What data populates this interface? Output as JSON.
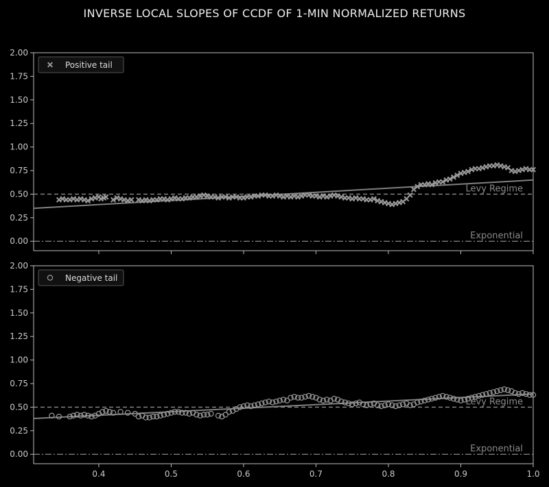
{
  "title": "INVERSE LOCAL SLOPES OF CCDF OF 1-MIN NORMALIZED RETURNS",
  "colors": {
    "background": "#000000",
    "axes": "#bfbfbf",
    "text": "#cccccc",
    "marker": "#9a9a9a",
    "fit_line": "#808080",
    "ref_line": "#8c8c8c"
  },
  "chart_data": [
    {
      "type": "scatter",
      "title": "",
      "legend_label": "Positive tail",
      "legend_position": "top-left",
      "marker": "x",
      "xlim": [
        0.31,
        1.0
      ],
      "ylim": [
        -0.1,
        2.0
      ],
      "xticks": [
        "0.4",
        "0.5",
        "0.6",
        "0.7",
        "0.8",
        "0.9",
        "1.0"
      ],
      "xtick_values": [
        0.4,
        0.5,
        0.6,
        0.7,
        0.8,
        0.9,
        1.0
      ],
      "yticks": [
        "0.00",
        "0.25",
        "0.50",
        "0.75",
        "1.00",
        "1.25",
        "1.50",
        "1.75",
        "2.00"
      ],
      "ytick_values": [
        0,
        0.25,
        0.5,
        0.75,
        1.0,
        1.25,
        1.5,
        1.75,
        2.0
      ],
      "show_xtick_labels": false,
      "fit_line": {
        "x": [
          0.31,
          1.0
        ],
        "y": [
          0.35,
          0.65
        ]
      },
      "reference_lines": [
        {
          "y": 0.5,
          "style": "dashed",
          "label": "Levy Regime"
        },
        {
          "y": 0.0,
          "style": "dashdot",
          "label": "Exponential"
        }
      ],
      "points": [
        [
          0.345,
          0.44
        ],
        [
          0.35,
          0.45
        ],
        [
          0.355,
          0.44
        ],
        [
          0.36,
          0.44
        ],
        [
          0.365,
          0.45
        ],
        [
          0.37,
          0.44
        ],
        [
          0.375,
          0.45
        ],
        [
          0.38,
          0.44
        ],
        [
          0.385,
          0.43
        ],
        [
          0.39,
          0.45
        ],
        [
          0.395,
          0.46
        ],
        [
          0.4,
          0.47
        ],
        [
          0.403,
          0.45
        ],
        [
          0.407,
          0.46
        ],
        [
          0.41,
          0.47
        ],
        [
          0.42,
          0.44
        ],
        [
          0.425,
          0.46
        ],
        [
          0.43,
          0.45
        ],
        [
          0.435,
          0.44
        ],
        [
          0.44,
          0.43
        ],
        [
          0.445,
          0.44
        ],
        [
          0.455,
          0.44
        ],
        [
          0.46,
          0.43
        ],
        [
          0.465,
          0.44
        ],
        [
          0.47,
          0.43
        ],
        [
          0.475,
          0.44
        ],
        [
          0.48,
          0.44
        ],
        [
          0.485,
          0.45
        ],
        [
          0.49,
          0.45
        ],
        [
          0.495,
          0.44
        ],
        [
          0.5,
          0.45
        ],
        [
          0.505,
          0.46
        ],
        [
          0.51,
          0.45
        ],
        [
          0.515,
          0.45
        ],
        [
          0.52,
          0.46
        ],
        [
          0.525,
          0.46
        ],
        [
          0.53,
          0.47
        ],
        [
          0.535,
          0.47
        ],
        [
          0.54,
          0.48
        ],
        [
          0.545,
          0.49
        ],
        [
          0.55,
          0.48
        ],
        [
          0.555,
          0.47
        ],
        [
          0.56,
          0.47
        ],
        [
          0.565,
          0.46
        ],
        [
          0.57,
          0.47
        ],
        [
          0.575,
          0.47
        ],
        [
          0.58,
          0.46
        ],
        [
          0.585,
          0.47
        ],
        [
          0.59,
          0.47
        ],
        [
          0.595,
          0.46
        ],
        [
          0.6,
          0.46
        ],
        [
          0.605,
          0.47
        ],
        [
          0.61,
          0.47
        ],
        [
          0.615,
          0.48
        ],
        [
          0.62,
          0.48
        ],
        [
          0.625,
          0.49
        ],
        [
          0.63,
          0.49
        ],
        [
          0.635,
          0.48
        ],
        [
          0.64,
          0.48
        ],
        [
          0.645,
          0.49
        ],
        [
          0.65,
          0.48
        ],
        [
          0.655,
          0.47
        ],
        [
          0.66,
          0.48
        ],
        [
          0.665,
          0.47
        ],
        [
          0.67,
          0.48
        ],
        [
          0.675,
          0.47
        ],
        [
          0.68,
          0.48
        ],
        [
          0.685,
          0.49
        ],
        [
          0.69,
          0.49
        ],
        [
          0.695,
          0.48
        ],
        [
          0.7,
          0.48
        ],
        [
          0.705,
          0.47
        ],
        [
          0.71,
          0.48
        ],
        [
          0.715,
          0.47
        ],
        [
          0.72,
          0.48
        ],
        [
          0.725,
          0.49
        ],
        [
          0.73,
          0.48
        ],
        [
          0.735,
          0.47
        ],
        [
          0.74,
          0.46
        ],
        [
          0.745,
          0.46
        ],
        [
          0.75,
          0.45
        ],
        [
          0.755,
          0.46
        ],
        [
          0.76,
          0.45
        ],
        [
          0.765,
          0.45
        ],
        [
          0.77,
          0.44
        ],
        [
          0.775,
          0.44
        ],
        [
          0.78,
          0.45
        ],
        [
          0.785,
          0.43
        ],
        [
          0.79,
          0.42
        ],
        [
          0.795,
          0.41
        ],
        [
          0.8,
          0.4
        ],
        [
          0.805,
          0.39
        ],
        [
          0.81,
          0.4
        ],
        [
          0.815,
          0.41
        ],
        [
          0.82,
          0.42
        ],
        [
          0.825,
          0.45
        ],
        [
          0.83,
          0.49
        ],
        [
          0.835,
          0.55
        ],
        [
          0.84,
          0.58
        ],
        [
          0.845,
          0.6
        ],
        [
          0.85,
          0.6
        ],
        [
          0.855,
          0.61
        ],
        [
          0.86,
          0.6
        ],
        [
          0.865,
          0.62
        ],
        [
          0.87,
          0.63
        ],
        [
          0.875,
          0.63
        ],
        [
          0.88,
          0.65
        ],
        [
          0.885,
          0.66
        ],
        [
          0.89,
          0.68
        ],
        [
          0.895,
          0.7
        ],
        [
          0.9,
          0.72
        ],
        [
          0.905,
          0.73
        ],
        [
          0.91,
          0.74
        ],
        [
          0.915,
          0.76
        ],
        [
          0.92,
          0.77
        ],
        [
          0.925,
          0.77
        ],
        [
          0.93,
          0.78
        ],
        [
          0.935,
          0.79
        ],
        [
          0.94,
          0.8
        ],
        [
          0.945,
          0.8
        ],
        [
          0.95,
          0.81
        ],
        [
          0.955,
          0.8
        ],
        [
          0.96,
          0.79
        ],
        [
          0.965,
          0.78
        ],
        [
          0.97,
          0.75
        ],
        [
          0.975,
          0.74
        ],
        [
          0.98,
          0.75
        ],
        [
          0.985,
          0.76
        ],
        [
          0.99,
          0.77
        ],
        [
          0.995,
          0.76
        ],
        [
          1.0,
          0.76
        ]
      ]
    },
    {
      "type": "scatter",
      "title": "",
      "legend_label": "Negative tail",
      "legend_position": "top-left",
      "marker": "o",
      "xlim": [
        0.31,
        1.0
      ],
      "ylim": [
        -0.1,
        2.0
      ],
      "xticks": [
        "0.4",
        "0.5",
        "0.6",
        "0.7",
        "0.8",
        "0.9",
        "1.0"
      ],
      "xtick_values": [
        0.4,
        0.5,
        0.6,
        0.7,
        0.8,
        0.9,
        1.0
      ],
      "yticks": [
        "0.00",
        "0.25",
        "0.50",
        "0.75",
        "1.00",
        "1.25",
        "1.50",
        "1.75",
        "2.00"
      ],
      "ytick_values": [
        0,
        0.25,
        0.5,
        0.75,
        1.0,
        1.25,
        1.5,
        1.75,
        2.0
      ],
      "show_xtick_labels": true,
      "fit_line": {
        "x": [
          0.31,
          1.0
        ],
        "y": [
          0.38,
          0.64
        ]
      },
      "reference_lines": [
        {
          "y": 0.5,
          "style": "dashed",
          "label": "Levy Regime"
        },
        {
          "y": 0.0,
          "style": "dashdot",
          "label": "Exponential"
        }
      ],
      "points": [
        [
          0.335,
          0.41
        ],
        [
          0.345,
          0.4
        ],
        [
          0.36,
          0.4
        ],
        [
          0.365,
          0.41
        ],
        [
          0.37,
          0.42
        ],
        [
          0.375,
          0.41
        ],
        [
          0.38,
          0.42
        ],
        [
          0.385,
          0.41
        ],
        [
          0.39,
          0.4
        ],
        [
          0.395,
          0.41
        ],
        [
          0.4,
          0.43
        ],
        [
          0.405,
          0.45
        ],
        [
          0.41,
          0.46
        ],
        [
          0.415,
          0.45
        ],
        [
          0.42,
          0.44
        ],
        [
          0.43,
          0.45
        ],
        [
          0.44,
          0.44
        ],
        [
          0.45,
          0.43
        ],
        [
          0.455,
          0.4
        ],
        [
          0.46,
          0.41
        ],
        [
          0.465,
          0.39
        ],
        [
          0.47,
          0.39
        ],
        [
          0.475,
          0.4
        ],
        [
          0.48,
          0.4
        ],
        [
          0.485,
          0.41
        ],
        [
          0.49,
          0.42
        ],
        [
          0.495,
          0.43
        ],
        [
          0.5,
          0.44
        ],
        [
          0.505,
          0.45
        ],
        [
          0.51,
          0.45
        ],
        [
          0.515,
          0.44
        ],
        [
          0.52,
          0.44
        ],
        [
          0.525,
          0.43
        ],
        [
          0.53,
          0.44
        ],
        [
          0.535,
          0.42
        ],
        [
          0.54,
          0.41
        ],
        [
          0.545,
          0.42
        ],
        [
          0.55,
          0.42
        ],
        [
          0.555,
          0.43
        ],
        [
          0.565,
          0.41
        ],
        [
          0.57,
          0.4
        ],
        [
          0.575,
          0.42
        ],
        [
          0.58,
          0.45
        ],
        [
          0.585,
          0.46
        ],
        [
          0.59,
          0.48
        ],
        [
          0.595,
          0.5
        ],
        [
          0.6,
          0.51
        ],
        [
          0.605,
          0.52
        ],
        [
          0.61,
          0.51
        ],
        [
          0.615,
          0.52
        ],
        [
          0.62,
          0.53
        ],
        [
          0.625,
          0.54
        ],
        [
          0.63,
          0.55
        ],
        [
          0.635,
          0.56
        ],
        [
          0.64,
          0.55
        ],
        [
          0.645,
          0.56
        ],
        [
          0.65,
          0.57
        ],
        [
          0.655,
          0.58
        ],
        [
          0.66,
          0.57
        ],
        [
          0.665,
          0.6
        ],
        [
          0.67,
          0.61
        ],
        [
          0.675,
          0.6
        ],
        [
          0.68,
          0.6
        ],
        [
          0.685,
          0.61
        ],
        [
          0.69,
          0.62
        ],
        [
          0.695,
          0.61
        ],
        [
          0.7,
          0.6
        ],
        [
          0.705,
          0.58
        ],
        [
          0.71,
          0.57
        ],
        [
          0.715,
          0.58
        ],
        [
          0.72,
          0.57
        ],
        [
          0.725,
          0.59
        ],
        [
          0.73,
          0.58
        ],
        [
          0.735,
          0.56
        ],
        [
          0.74,
          0.55
        ],
        [
          0.745,
          0.54
        ],
        [
          0.75,
          0.53
        ],
        [
          0.755,
          0.54
        ],
        [
          0.76,
          0.55
        ],
        [
          0.765,
          0.53
        ],
        [
          0.77,
          0.52
        ],
        [
          0.775,
          0.53
        ],
        [
          0.78,
          0.54
        ],
        [
          0.785,
          0.52
        ],
        [
          0.79,
          0.51
        ],
        [
          0.795,
          0.52
        ],
        [
          0.8,
          0.53
        ],
        [
          0.805,
          0.52
        ],
        [
          0.81,
          0.51
        ],
        [
          0.815,
          0.52
        ],
        [
          0.82,
          0.53
        ],
        [
          0.825,
          0.54
        ],
        [
          0.83,
          0.52
        ],
        [
          0.835,
          0.53
        ],
        [
          0.84,
          0.55
        ],
        [
          0.845,
          0.56
        ],
        [
          0.85,
          0.57
        ],
        [
          0.855,
          0.58
        ],
        [
          0.86,
          0.59
        ],
        [
          0.865,
          0.6
        ],
        [
          0.87,
          0.61
        ],
        [
          0.875,
          0.62
        ],
        [
          0.88,
          0.61
        ],
        [
          0.885,
          0.6
        ],
        [
          0.89,
          0.59
        ],
        [
          0.895,
          0.58
        ],
        [
          0.9,
          0.57
        ],
        [
          0.905,
          0.58
        ],
        [
          0.91,
          0.59
        ],
        [
          0.915,
          0.6
        ],
        [
          0.92,
          0.61
        ],
        [
          0.925,
          0.62
        ],
        [
          0.93,
          0.63
        ],
        [
          0.935,
          0.64
        ],
        [
          0.94,
          0.65
        ],
        [
          0.945,
          0.66
        ],
        [
          0.95,
          0.67
        ],
        [
          0.955,
          0.68
        ],
        [
          0.96,
          0.69
        ],
        [
          0.965,
          0.68
        ],
        [
          0.97,
          0.67
        ],
        [
          0.975,
          0.65
        ],
        [
          0.98,
          0.64
        ],
        [
          0.985,
          0.65
        ],
        [
          0.99,
          0.64
        ],
        [
          0.995,
          0.63
        ],
        [
          1.0,
          0.63
        ]
      ]
    }
  ]
}
